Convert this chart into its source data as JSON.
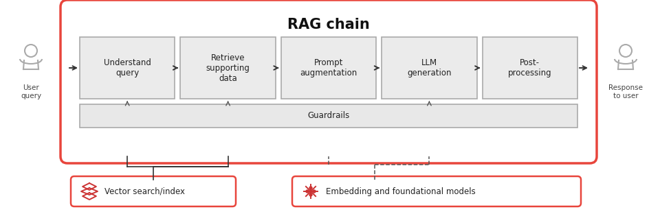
{
  "title": "RAG chain",
  "bg_color": "#ffffff",
  "rag_box_color": "#ffffff",
  "rag_box_edge": "#e8453c",
  "step_box_fill": "#ebebeb",
  "step_box_edge": "#aaaaaa",
  "guardrail_fill": "#e8e8e8",
  "guardrail_edge": "#aaaaaa",
  "bottom_box_fill": "#ffffff",
  "bottom_box_edge": "#e8453c",
  "steps": [
    "Understand\nquery",
    "Retrieve\nsupporting\ndata",
    "Prompt\naugmentation",
    "LLM\ngeneration",
    "Post-\nprocessing"
  ],
  "guardrails_label": "Guardrails",
  "left_label": "User\nquery",
  "right_label": "Response\nto user",
  "bottom_left_label": "Vector search/index",
  "bottom_right_label": "Embedding and foundational models",
  "arrow_color": "#333333",
  "dashed_color": "#555555",
  "title_fontsize": 15,
  "step_fontsize": 8.5,
  "icon_color": "#cc3333"
}
